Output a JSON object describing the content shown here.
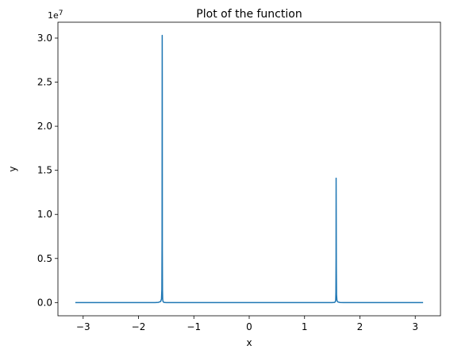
{
  "chart_data": {
    "type": "line",
    "title": "Plot of the function",
    "xlabel": "x",
    "ylabel": "y",
    "y_offset_label": "1e7",
    "y_scale": 10000000,
    "xlim": [
      -3.4558,
      3.4558
    ],
    "ylim": [
      -1500000,
      31800000
    ],
    "grid": false,
    "x_ticks": [
      {
        "value": -3,
        "label": "−3"
      },
      {
        "value": -2,
        "label": "−2"
      },
      {
        "value": -1,
        "label": "−1"
      },
      {
        "value": 0,
        "label": "0"
      },
      {
        "value": 1,
        "label": "1"
      },
      {
        "value": 2,
        "label": "2"
      },
      {
        "value": 3,
        "label": "3"
      }
    ],
    "y_ticks": [
      {
        "value": 0,
        "label": "0.0"
      },
      {
        "value": 5000000,
        "label": "0.5"
      },
      {
        "value": 10000000,
        "label": "1.0"
      },
      {
        "value": 15000000,
        "label": "1.5"
      },
      {
        "value": 20000000,
        "label": "2.0"
      },
      {
        "value": 25000000,
        "label": "2.5"
      },
      {
        "value": 30000000,
        "label": "3.0"
      }
    ],
    "series": [
      {
        "color": "#1f77b4",
        "x": [
          -3.1416,
          -2.5,
          -2.0,
          -1.8,
          -1.7,
          -1.64,
          -1.6,
          -1.585,
          -1.578,
          -1.5745,
          -1.5718,
          -1.5705,
          -1.5692,
          -1.5665,
          -1.563,
          -1.556,
          -1.54,
          -1.5,
          -1.4,
          -1.0,
          0.0,
          1.0,
          1.4,
          1.5,
          1.54,
          1.556,
          1.563,
          1.5665,
          1.5692,
          1.5705,
          1.5718,
          1.5745,
          1.578,
          1.585,
          1.6,
          1.64,
          1.7,
          1.8,
          2.0,
          2.5,
          3.1416
        ],
        "y": [
          0,
          0,
          0,
          0,
          0,
          20000,
          120000,
          400000,
          1500000,
          7000000,
          30300000,
          25000000,
          6000000,
          1400000,
          350000,
          100000,
          20000,
          0,
          0,
          0,
          0,
          0,
          0,
          0,
          20000,
          90000,
          300000,
          1200000,
          5000000,
          14100000,
          11000000,
          4000000,
          900000,
          250000,
          70000,
          10000,
          0,
          0,
          0,
          0,
          0
        ]
      }
    ]
  }
}
